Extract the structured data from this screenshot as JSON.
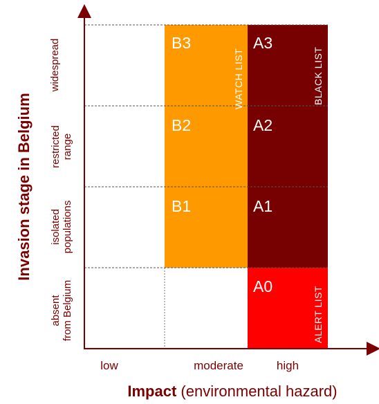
{
  "diagram": {
    "y_axis_title": "Invasion stage in Belgium",
    "x_axis_title_bold": "Impact",
    "x_axis_title_rest": " (environmental hazard)",
    "impact_levels": [
      "low",
      "moderate",
      "high"
    ],
    "stages": [
      {
        "id": "widespread",
        "lines": [
          "widespread"
        ]
      },
      {
        "id": "restricted-range",
        "lines": [
          "restricted",
          "range"
        ]
      },
      {
        "id": "isolated-populations",
        "lines": [
          "isolated",
          "populations"
        ]
      },
      {
        "id": "absent-from-belgium",
        "lines": [
          "absent",
          "from Belgium"
        ]
      }
    ],
    "cells": {
      "B3": "B3",
      "B2": "B2",
      "B1": "B1",
      "A3": "A3",
      "A2": "A2",
      "A1": "A1",
      "A0": "A0"
    },
    "lists": {
      "watch": "WATCH LIST",
      "black": "BLACK LIST",
      "alert": "ALERT LIST"
    },
    "colors": {
      "watch_list": "#ff9900",
      "black_list": "#770000",
      "alert_list": "#ff0000",
      "axis": "#7a0000"
    }
  }
}
